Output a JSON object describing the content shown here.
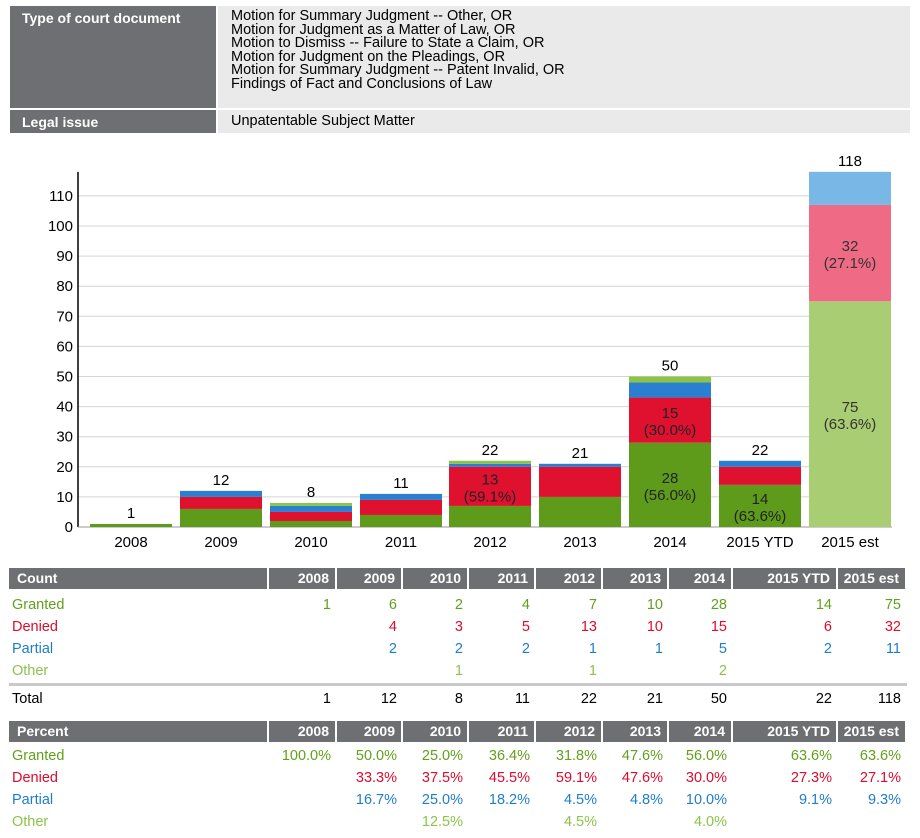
{
  "header": {
    "doc_type_label": "Type of court document",
    "doc_types": [
      "Motion for Summary Judgment -- Other, OR",
      "Motion for Judgment as a Matter of Law, OR",
      "Motion to Dismiss -- Failure to State a Claim, OR",
      "Motion for Judgment on the Pleadings, OR",
      "Motion for Summary Judgment -- Patent Invalid, OR",
      "Findings of Fact and Conclusions of Law"
    ],
    "legal_issue_label": "Legal issue",
    "legal_issue": "Unpatentable Subject Matter"
  },
  "colors": {
    "granted": "#5e9b1a",
    "denied": "#e0102f",
    "partial": "#2a7fd0",
    "other": "#8cc34a",
    "est_granted": "#a8cd72",
    "est_denied": "#ef6a84",
    "est_partial": "#79b8e6",
    "header_bg": "#6e6f73",
    "value_bg": "#eaeaeb"
  },
  "chart_data": {
    "type": "bar",
    "stacked": true,
    "categories": [
      "2008",
      "2009",
      "2010",
      "2011",
      "2012",
      "2013",
      "2014",
      "2015 YTD",
      "2015 est"
    ],
    "series": [
      {
        "name": "Granted",
        "values": [
          1,
          6,
          2,
          4,
          7,
          10,
          28,
          14,
          75
        ]
      },
      {
        "name": "Denied",
        "values": [
          0,
          4,
          3,
          5,
          13,
          10,
          15,
          6,
          32
        ]
      },
      {
        "name": "Partial",
        "values": [
          0,
          2,
          2,
          2,
          1,
          1,
          5,
          2,
          11
        ]
      },
      {
        "name": "Other",
        "values": [
          0,
          0,
          1,
          0,
          1,
          0,
          2,
          0,
          0
        ]
      }
    ],
    "totals": [
      1,
      12,
      8,
      11,
      22,
      21,
      50,
      22,
      118
    ],
    "yticks": [
      0,
      10,
      20,
      30,
      40,
      50,
      60,
      70,
      80,
      90,
      100,
      110
    ],
    "ylim": [
      0,
      118
    ],
    "grid": true,
    "bar_labels": [
      {
        "category": "2012",
        "series": "Denied",
        "lines": [
          "13",
          "(59.1%)"
        ]
      },
      {
        "category": "2014",
        "series": "Denied",
        "lines": [
          "15",
          "(30.0%)"
        ]
      },
      {
        "category": "2014",
        "series": "Granted",
        "lines": [
          "28",
          "(56.0%)"
        ]
      },
      {
        "category": "2015 YTD",
        "series": "Granted",
        "lines": [
          "14",
          "(63.6%)"
        ]
      },
      {
        "category": "2015 est",
        "series": "Denied",
        "lines": [
          "32",
          "(27.1%)"
        ]
      },
      {
        "category": "2015 est",
        "series": "Granted",
        "lines": [
          "75",
          "(63.6%)"
        ]
      }
    ]
  },
  "count_table": {
    "title": "Count",
    "columns": [
      "2008",
      "2009",
      "2010",
      "2011",
      "2012",
      "2013",
      "2014",
      "2015 YTD",
      "2015 est"
    ],
    "rows": [
      {
        "label": "Granted",
        "key": "granted",
        "values": [
          "1",
          "6",
          "2",
          "4",
          "7",
          "10",
          "28",
          "14",
          "75"
        ]
      },
      {
        "label": "Denied",
        "key": "denied",
        "values": [
          "",
          "4",
          "3",
          "5",
          "13",
          "10",
          "15",
          "6",
          "32"
        ]
      },
      {
        "label": "Partial",
        "key": "partial",
        "values": [
          "",
          "2",
          "2",
          "2",
          "1",
          "1",
          "5",
          "2",
          "11"
        ]
      },
      {
        "label": "Other",
        "key": "other",
        "values": [
          "",
          "",
          "1",
          "",
          "1",
          "",
          "2",
          "",
          ""
        ]
      }
    ],
    "total": {
      "label": "Total",
      "values": [
        "1",
        "12",
        "8",
        "11",
        "22",
        "21",
        "50",
        "22",
        "118"
      ]
    }
  },
  "percent_table": {
    "title": "Percent",
    "columns": [
      "2008",
      "2009",
      "2010",
      "2011",
      "2012",
      "2013",
      "2014",
      "2015 YTD",
      "2015 est"
    ],
    "rows": [
      {
        "label": "Granted",
        "key": "granted",
        "values": [
          "100.0%",
          "50.0%",
          "25.0%",
          "36.4%",
          "31.8%",
          "47.6%",
          "56.0%",
          "63.6%",
          "63.6%"
        ]
      },
      {
        "label": "Denied",
        "key": "denied",
        "values": [
          "",
          "33.3%",
          "37.5%",
          "45.5%",
          "59.1%",
          "47.6%",
          "30.0%",
          "27.3%",
          "27.1%"
        ]
      },
      {
        "label": "Partial",
        "key": "partial",
        "values": [
          "",
          "16.7%",
          "25.0%",
          "18.2%",
          "4.5%",
          "4.8%",
          "10.0%",
          "9.1%",
          "9.3%"
        ]
      },
      {
        "label": "Other",
        "key": "other",
        "values": [
          "",
          "",
          "12.5%",
          "",
          "4.5%",
          "",
          "4.0%",
          "",
          ""
        ]
      }
    ]
  }
}
